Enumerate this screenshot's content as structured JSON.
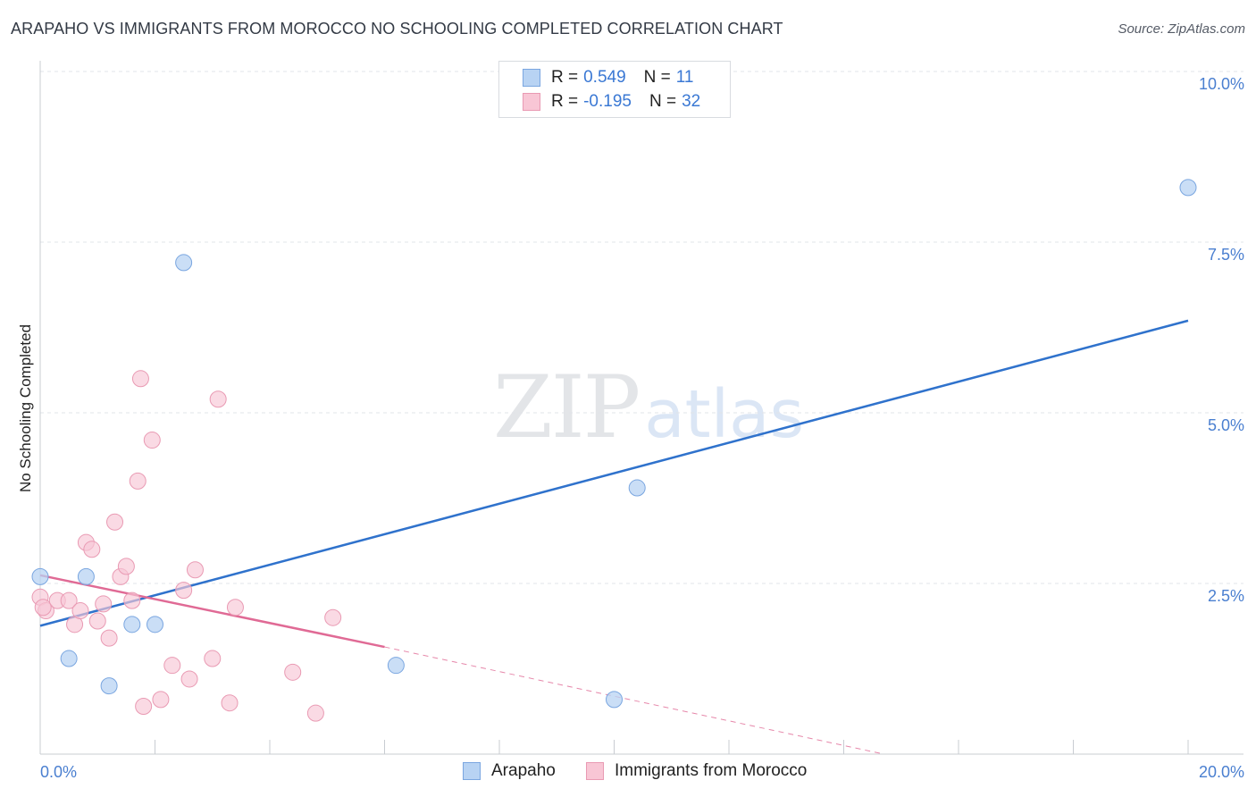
{
  "title": "ARAPAHO VS IMMIGRANTS FROM MOROCCO NO SCHOOLING COMPLETED CORRELATION CHART",
  "source": "Source: ZipAtlas.com",
  "watermark": {
    "zip": "ZIP",
    "atlas": "atlas"
  },
  "legend": {
    "series": [
      {
        "r_label": "R =",
        "r_value": "0.549",
        "n_label": "N =",
        "n_value": "11"
      },
      {
        "r_label": "R =",
        "r_value": "-0.195",
        "n_label": "N =",
        "n_value": "32"
      }
    ]
  },
  "colors": {
    "arapaho_fill": "#b8d3f3",
    "arapaho_stroke": "#7aa6e0",
    "arapaho_line": "#2f72cc",
    "morocco_fill": "#f8c6d5",
    "morocco_stroke": "#e99ab3",
    "morocco_line": "#e06a95",
    "grid": "#e1e4e8",
    "axis": "#c8ccd2"
  },
  "chart_data": {
    "type": "scatter",
    "title": "ARAPAHO VS IMMIGRANTS FROM MOROCCO NO SCHOOLING COMPLETED CORRELATION CHART",
    "xlabel": "",
    "ylabel": "No Schooling Completed",
    "xlim": [
      0,
      20
    ],
    "ylim": [
      0,
      10
    ],
    "x_tick_labels": [
      "0.0%",
      "20.0%"
    ],
    "y_ticks": [
      2.5,
      5.0,
      7.5,
      10.0
    ],
    "y_tick_labels": [
      "2.5%",
      "5.0%",
      "7.5%",
      "10.0%"
    ],
    "grid": true,
    "legend_position": "top-center",
    "series": [
      {
        "name": "Arapaho",
        "color": "#7aa6e0",
        "points": [
          {
            "x": 0.0,
            "y": 2.6
          },
          {
            "x": 0.5,
            "y": 1.4
          },
          {
            "x": 0.8,
            "y": 2.6
          },
          {
            "x": 1.2,
            "y": 1.0
          },
          {
            "x": 1.6,
            "y": 1.9
          },
          {
            "x": 2.0,
            "y": 1.9
          },
          {
            "x": 2.5,
            "y": 7.2
          },
          {
            "x": 6.2,
            "y": 1.3
          },
          {
            "x": 10.4,
            "y": 3.9
          },
          {
            "x": 10.0,
            "y": 0.8
          },
          {
            "x": 20.0,
            "y": 8.3
          }
        ],
        "trend": {
          "x0": 0,
          "y0": 1.88,
          "x1": 20,
          "y1": 6.35,
          "dashed_from": null
        }
      },
      {
        "name": "Immigrants from Morocco",
        "color": "#e99ab3",
        "points": [
          {
            "x": 0.0,
            "y": 2.3
          },
          {
            "x": 0.1,
            "y": 2.1
          },
          {
            "x": 0.3,
            "y": 2.25
          },
          {
            "x": 0.5,
            "y": 2.25
          },
          {
            "x": 0.6,
            "y": 1.9
          },
          {
            "x": 0.7,
            "y": 2.1
          },
          {
            "x": 0.8,
            "y": 3.1
          },
          {
            "x": 0.9,
            "y": 3.0
          },
          {
            "x": 1.0,
            "y": 1.95
          },
          {
            "x": 1.1,
            "y": 2.2
          },
          {
            "x": 1.2,
            "y": 1.7
          },
          {
            "x": 1.3,
            "y": 3.4
          },
          {
            "x": 1.4,
            "y": 2.6
          },
          {
            "x": 1.5,
            "y": 2.75
          },
          {
            "x": 1.6,
            "y": 2.25
          },
          {
            "x": 1.7,
            "y": 4.0
          },
          {
            "x": 1.75,
            "y": 5.5
          },
          {
            "x": 1.8,
            "y": 0.7
          },
          {
            "x": 1.95,
            "y": 4.6
          },
          {
            "x": 2.1,
            "y": 0.8
          },
          {
            "x": 2.3,
            "y": 1.3
          },
          {
            "x": 2.5,
            "y": 2.4
          },
          {
            "x": 2.6,
            "y": 1.1
          },
          {
            "x": 2.7,
            "y": 2.7
          },
          {
            "x": 3.0,
            "y": 1.4
          },
          {
            "x": 3.1,
            "y": 5.2
          },
          {
            "x": 3.3,
            "y": 0.75
          },
          {
            "x": 3.4,
            "y": 2.15
          },
          {
            "x": 4.4,
            "y": 1.2
          },
          {
            "x": 4.8,
            "y": 0.6
          },
          {
            "x": 5.1,
            "y": 2.0
          },
          {
            "x": 0.05,
            "y": 2.15
          }
        ],
        "trend": {
          "x0": 0,
          "y0": 2.62,
          "x1": 6.0,
          "y1": 1.57,
          "dash_to_x": 14.7,
          "dash_to_y": 0.0
        }
      }
    ]
  }
}
